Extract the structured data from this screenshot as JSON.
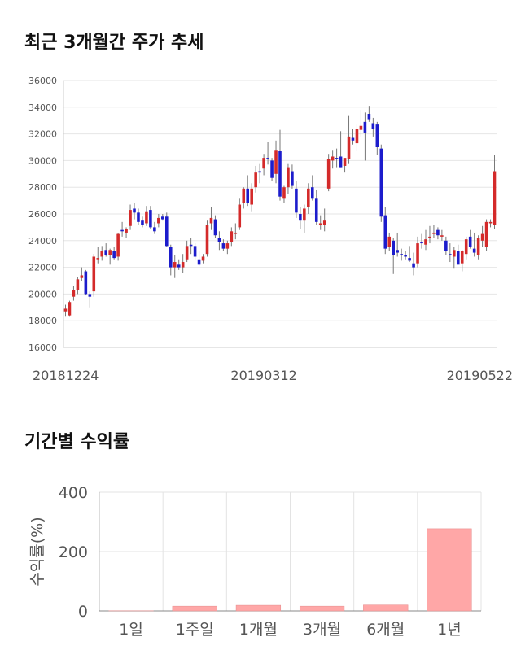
{
  "price_section": {
    "title": "최근 3개월간 주가 추세"
  },
  "returns_section": {
    "title": "기간별 수익률"
  },
  "chart_data": [
    {
      "type": "candlestick",
      "title": "최근 3개월간 주가 추세",
      "ylim": [
        16000,
        36000
      ],
      "yticks": [
        16000,
        18000,
        20000,
        22000,
        24000,
        26000,
        28000,
        30000,
        32000,
        34000,
        36000
      ],
      "xtick_labels": [
        "20181224",
        "20190312",
        "20190522"
      ],
      "xtick_index": [
        0,
        49,
        95
      ],
      "up_color": "#d42a2a",
      "down_color": "#1c1ccc",
      "candles": [
        [
          18700,
          19200,
          18300,
          18900
        ],
        [
          18400,
          19500,
          18300,
          19400
        ],
        [
          19800,
          20600,
          19500,
          20300
        ],
        [
          20300,
          21300,
          20000,
          21100
        ],
        [
          21200,
          22000,
          21000,
          21400
        ],
        [
          21700,
          21800,
          19900,
          20000
        ],
        [
          20000,
          20200,
          19000,
          19800
        ],
        [
          20200,
          23000,
          19800,
          22800
        ],
        [
          22700,
          23500,
          22300,
          22700
        ],
        [
          22800,
          23600,
          22500,
          23200
        ],
        [
          23300,
          23800,
          22800,
          22900
        ],
        [
          22900,
          23400,
          22200,
          23300
        ],
        [
          23200,
          23500,
          22600,
          22700
        ],
        [
          22800,
          24600,
          22500,
          24500
        ],
        [
          24800,
          25400,
          24300,
          24700
        ],
        [
          24600,
          25000,
          24200,
          24900
        ],
        [
          25100,
          26700,
          24800,
          26300
        ],
        [
          26400,
          26800,
          25600,
          26100
        ],
        [
          26100,
          26400,
          25200,
          25400
        ],
        [
          25500,
          25800,
          25000,
          25200
        ],
        [
          25300,
          26600,
          25100,
          26200
        ],
        [
          26300,
          26600,
          24900,
          25000
        ],
        [
          25000,
          25400,
          24500,
          24700
        ],
        [
          25300,
          26000,
          25000,
          25700
        ],
        [
          25800,
          26000,
          25500,
          25600
        ],
        [
          25800,
          26100,
          23500,
          23600
        ],
        [
          23500,
          23700,
          21400,
          22000
        ],
        [
          22000,
          22900,
          21200,
          22400
        ],
        [
          22200,
          22600,
          21800,
          22000
        ],
        [
          22000,
          23000,
          21600,
          22400
        ],
        [
          22600,
          24000,
          22400,
          23600
        ],
        [
          23700,
          24200,
          23000,
          23600
        ],
        [
          23600,
          23800,
          22600,
          22800
        ],
        [
          22600,
          23200,
          22100,
          22200
        ],
        [
          22500,
          23000,
          22300,
          22800
        ],
        [
          23000,
          25500,
          22800,
          25200
        ],
        [
          25300,
          26500,
          24800,
          25700
        ],
        [
          25600,
          25900,
          24200,
          24400
        ],
        [
          24200,
          24700,
          23300,
          23900
        ],
        [
          23800,
          24100,
          23200,
          23400
        ],
        [
          23400,
          24000,
          23000,
          23800
        ],
        [
          23900,
          25000,
          23600,
          24700
        ],
        [
          24500,
          25300,
          24100,
          24600
        ],
        [
          25000,
          27200,
          24800,
          26700
        ],
        [
          26800,
          28000,
          26400,
          27900
        ],
        [
          27900,
          28900,
          26600,
          26800
        ],
        [
          26700,
          28300,
          26200,
          27900
        ],
        [
          28000,
          29600,
          27600,
          29100
        ],
        [
          29200,
          29800,
          28300,
          29100
        ],
        [
          29400,
          30500,
          28900,
          30200
        ],
        [
          30200,
          31400,
          29700,
          30100
        ],
        [
          30000,
          30200,
          28500,
          28700
        ],
        [
          29000,
          31500,
          28300,
          30800
        ],
        [
          30700,
          32300,
          27000,
          27300
        ],
        [
          27200,
          28100,
          26800,
          28000
        ],
        [
          28000,
          29800,
          27500,
          29500
        ],
        [
          29200,
          29700,
          27900,
          28100
        ],
        [
          27900,
          28500,
          25700,
          26100
        ],
        [
          26000,
          26500,
          24900,
          25500
        ],
        [
          25500,
          26700,
          24600,
          26400
        ],
        [
          26500,
          28300,
          26000,
          27900
        ],
        [
          28000,
          28900,
          27000,
          27200
        ],
        [
          27200,
          27800,
          25200,
          25400
        ],
        [
          25300,
          25900,
          24800,
          25300
        ],
        [
          25200,
          26400,
          24700,
          25500
        ],
        [
          27900,
          30500,
          27700,
          30100
        ],
        [
          30000,
          30800,
          29400,
          30300
        ],
        [
          30200,
          30900,
          29500,
          30100
        ],
        [
          30300,
          32200,
          29500,
          29500
        ],
        [
          29600,
          30100,
          29100,
          30200
        ],
        [
          30100,
          33400,
          29800,
          31800
        ],
        [
          31700,
          32400,
          31200,
          31500
        ],
        [
          31300,
          32700,
          30700,
          32400
        ],
        [
          32300,
          33800,
          31800,
          32600
        ],
        [
          32900,
          33600,
          30000,
          32100
        ],
        [
          33500,
          34100,
          32900,
          33100
        ],
        [
          32800,
          33200,
          31800,
          32400
        ],
        [
          32700,
          32900,
          30400,
          31000
        ],
        [
          30900,
          31200,
          25400,
          25800
        ],
        [
          25900,
          26500,
          23000,
          23400
        ],
        [
          23500,
          24600,
          23200,
          24300
        ],
        [
          24000,
          24200,
          21500,
          22900
        ],
        [
          23300,
          24600,
          22800,
          23100
        ],
        [
          23000,
          23400,
          22500,
          22900
        ],
        [
          22900,
          23200,
          22600,
          22800
        ],
        [
          22700,
          23600,
          22400,
          22500
        ],
        [
          22300,
          23100,
          21400,
          22000
        ],
        [
          22300,
          24300,
          22000,
          23800
        ],
        [
          23900,
          24500,
          23400,
          23800
        ],
        [
          23700,
          24800,
          23300,
          24100
        ],
        [
          24200,
          25100,
          23800,
          24300
        ],
        [
          24500,
          25200,
          24200,
          24600
        ],
        [
          24800,
          25000,
          24100,
          24400
        ],
        [
          24300,
          24800,
          24000,
          24400
        ],
        [
          24000,
          24300,
          22900,
          23200
        ],
        [
          23000,
          23800,
          22400,
          22900
        ],
        [
          22800,
          23500,
          21900,
          23300
        ],
        [
          23200,
          23700,
          22400,
          22200
        ],
        [
          22300,
          23300,
          21700,
          23200
        ],
        [
          23000,
          24300,
          22600,
          24100
        ],
        [
          24300,
          24800,
          23400,
          23500
        ],
        [
          23400,
          24600,
          22800,
          23100
        ],
        [
          22900,
          24400,
          22600,
          24200
        ],
        [
          24000,
          25100,
          23500,
          24500
        ],
        [
          23500,
          25600,
          23200,
          25400
        ],
        [
          25300,
          25600,
          25000,
          25400
        ],
        [
          25200,
          30400,
          24900,
          29200
        ]
      ]
    },
    {
      "type": "bar",
      "title": "기간별 수익률",
      "ylabel": "수익률(%)",
      "ylim": [
        0,
        400
      ],
      "yticks": [
        0,
        200,
        400
      ],
      "categories": [
        "1일",
        "1주일",
        "1개월",
        "3개월",
        "6개월",
        "1년"
      ],
      "values": [
        0.5,
        16,
        19,
        16,
        20,
        277
      ],
      "bar_color": "#ffa7a7",
      "bar_stroke": "#e58b8b"
    }
  ]
}
